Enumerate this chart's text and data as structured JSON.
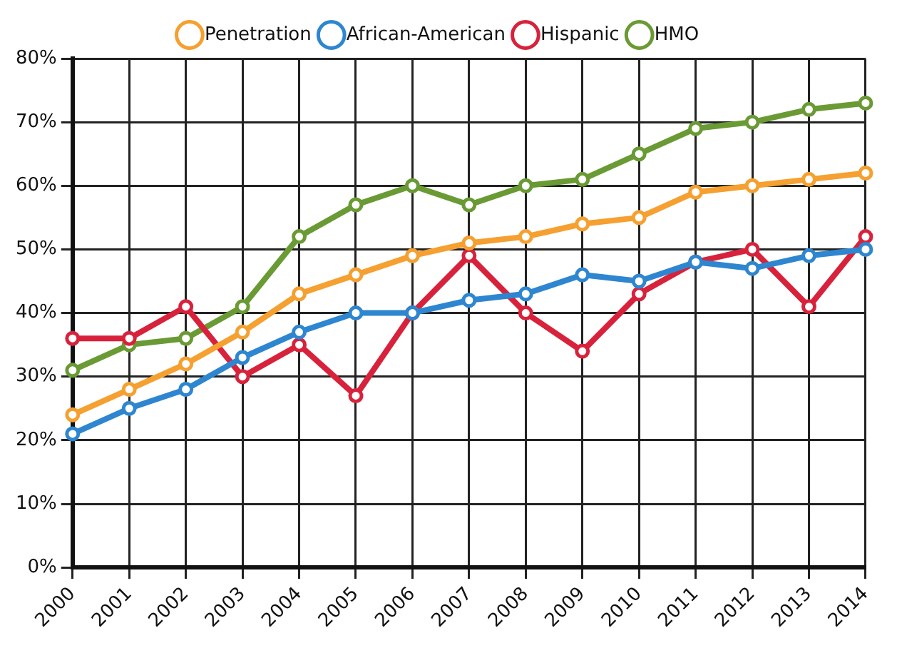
{
  "chart_data": {
    "type": "line",
    "categories": [
      "2000",
      "2001",
      "2002",
      "2003",
      "2004",
      "2005",
      "2006",
      "2007",
      "2008",
      "2009",
      "2010",
      "2011",
      "2012",
      "2013",
      "2014"
    ],
    "series": [
      {
        "name": "Penetration",
        "color": "#f5a030",
        "values": [
          24,
          28,
          32,
          37,
          43,
          46,
          49,
          51,
          52,
          54,
          55,
          59,
          60,
          61,
          62
        ]
      },
      {
        "name": "African-American",
        "color": "#2e86d0",
        "values": [
          21,
          25,
          28,
          33,
          37,
          40,
          40,
          42,
          43,
          46,
          45,
          48,
          47,
          49,
          50
        ]
      },
      {
        "name": "Hispanic",
        "color": "#d8223c",
        "values": [
          36,
          36,
          41,
          30,
          35,
          27,
          40,
          49,
          40,
          34,
          43,
          48,
          50,
          41,
          52
        ]
      },
      {
        "name": "HMO",
        "color": "#6a9a34",
        "values": [
          31,
          35,
          36,
          41,
          52,
          57,
          60,
          57,
          60,
          61,
          65,
          69,
          70,
          72,
          73
        ]
      }
    ],
    "ylim": [
      0,
      80
    ],
    "yticks": [
      {
        "value": 0,
        "label": "0%"
      },
      {
        "value": 10,
        "label": "10%"
      },
      {
        "value": 20,
        "label": "20%"
      },
      {
        "value": 30,
        "label": "30%"
      },
      {
        "value": 40,
        "label": "40%"
      },
      {
        "value": 50,
        "label": "50%"
      },
      {
        "value": 60,
        "label": "60%"
      },
      {
        "value": 70,
        "label": "70%"
      },
      {
        "value": 80,
        "label": "80%"
      }
    ],
    "grid": true,
    "legend": "top",
    "marker": "circle",
    "line_style": "solid"
  }
}
